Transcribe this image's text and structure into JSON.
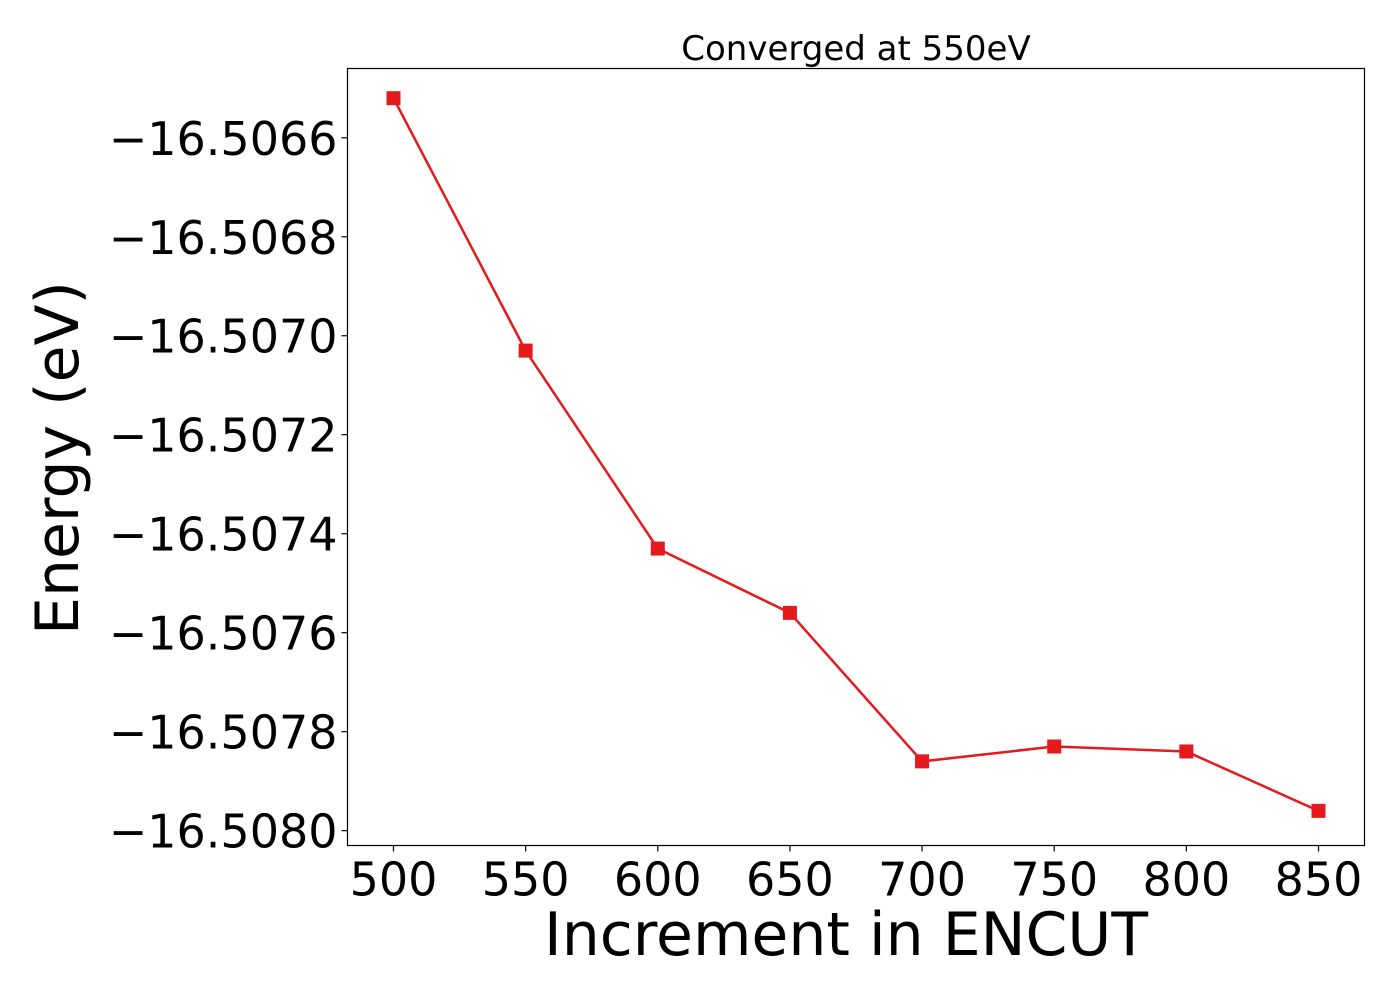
{
  "chart_data": {
    "type": "line",
    "title": "Converged at 550eV",
    "xlabel": "Increment in ENCUT",
    "ylabel": "Energy (eV)",
    "x": [
      500,
      550,
      600,
      650,
      700,
      750,
      800,
      850
    ],
    "series": [
      {
        "values": [
          -16.50652,
          -16.50703,
          -16.50743,
          -16.50756,
          -16.50786,
          -16.50783,
          -16.50784,
          -16.50796
        ],
        "color": "#e41a1c",
        "marker": "square"
      }
    ],
    "xticks": [
      500,
      550,
      600,
      650,
      700,
      750,
      800,
      850
    ],
    "xtick_labels": [
      "500",
      "550",
      "600",
      "650",
      "700",
      "750",
      "800",
      "850"
    ],
    "yticks": [
      -16.5066,
      -16.5068,
      -16.507,
      -16.5072,
      -16.5074,
      -16.5076,
      -16.5078,
      -16.508
    ],
    "ytick_labels": [
      "−16.5066",
      "−16.5068",
      "−16.5070",
      "−16.5072",
      "−16.5074",
      "−16.5076",
      "−16.5078",
      "−16.5080"
    ],
    "xlim": [
      482.6,
      867.4
    ],
    "ylim": [
      -16.50803,
      -16.50646
    ],
    "grid": false,
    "legend": "none"
  }
}
